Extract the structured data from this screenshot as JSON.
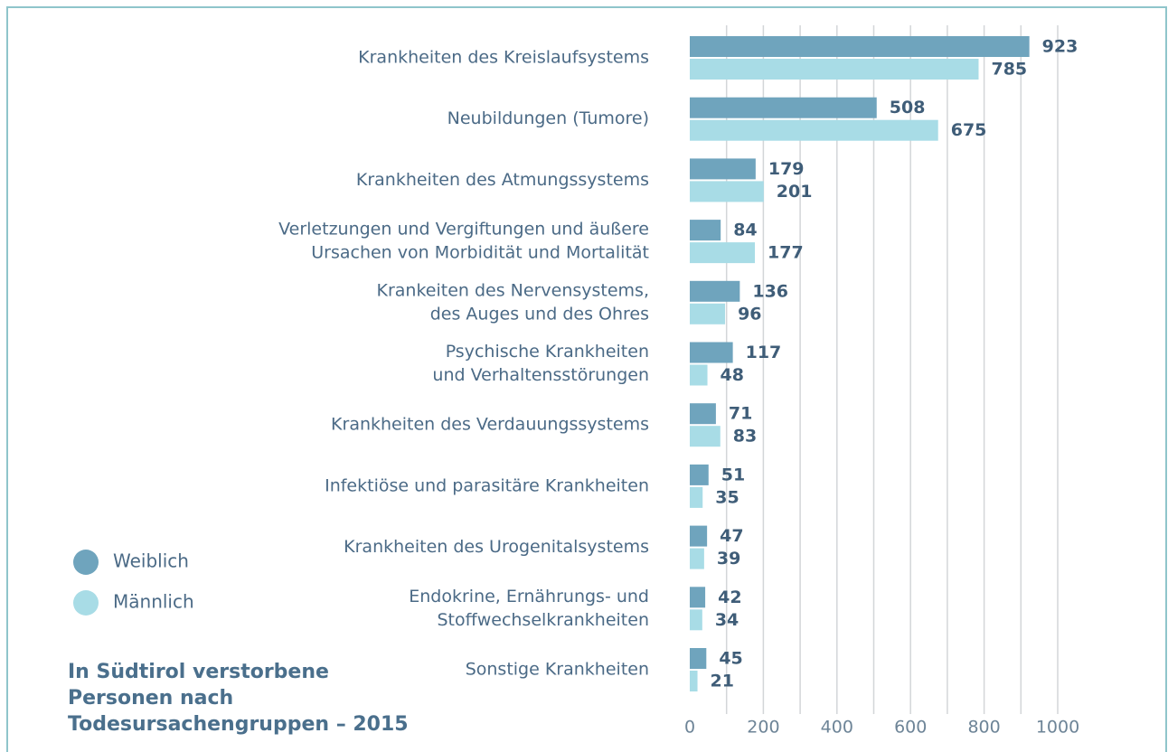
{
  "chart_data": {
    "type": "bar",
    "orientation": "horizontal",
    "title": [
      "In Südtirol verstorbene",
      "Personen nach",
      "Todesursachengruppen – 2015"
    ],
    "categories": [
      [
        "Krankheiten des Kreislaufsystems"
      ],
      [
        "Neubildungen (Tumore)"
      ],
      [
        "Krankheiten des Atmungssystems"
      ],
      [
        "Verletzungen und Vergiftungen und äußere",
        "Ursachen von Morbidität und Mortalität"
      ],
      [
        "Krankeiten des Nervensystems,",
        "des Auges und des Ohres"
      ],
      [
        "Psychische Krankheiten",
        "und Verhaltensstörungen"
      ],
      [
        "Krankheiten des Verdauungssystems"
      ],
      [
        "Infektiöse und parasitäre Krankheiten"
      ],
      [
        "Krankheiten des Urogenitalsystems"
      ],
      [
        "Endokrine, Ernährungs- und",
        "Stoffwechselkrankheiten"
      ],
      [
        "Sonstige Krankheiten"
      ]
    ],
    "series": [
      {
        "name": "Weiblich",
        "color": "#6fa4bd",
        "values": [
          923,
          508,
          179,
          84,
          136,
          117,
          71,
          51,
          47,
          42,
          45
        ]
      },
      {
        "name": "Männlich",
        "color": "#a8dce6",
        "values": [
          785,
          675,
          201,
          177,
          96,
          48,
          83,
          35,
          39,
          34,
          21
        ]
      }
    ],
    "xlim": [
      0,
      1000
    ],
    "xticks": [
      0,
      200,
      400,
      600,
      800,
      1000
    ],
    "xminor": [
      100,
      300,
      500,
      700,
      900
    ],
    "grid": true
  }
}
